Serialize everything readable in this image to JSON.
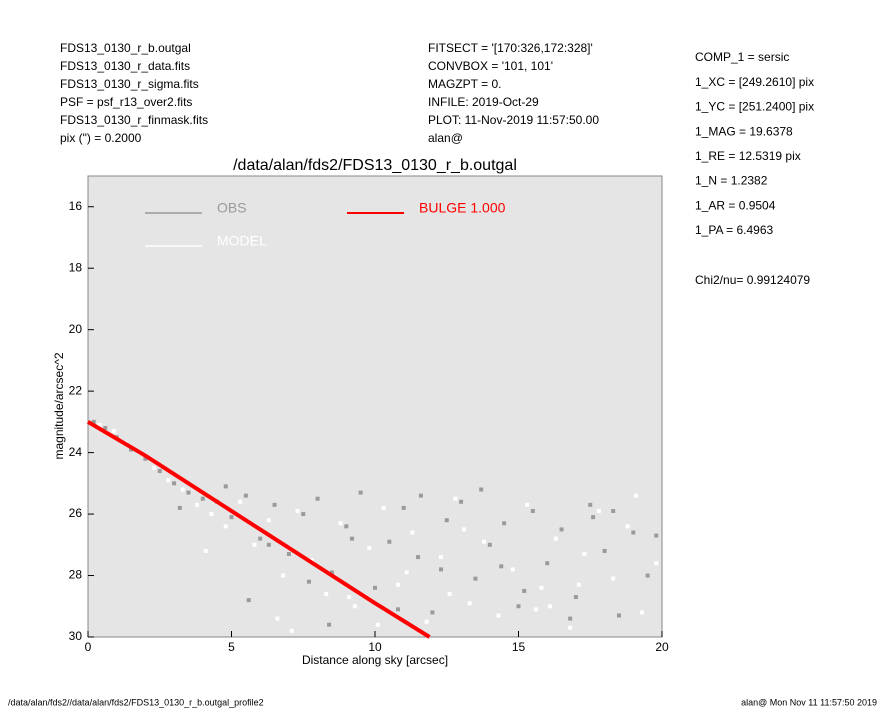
{
  "header": {
    "left": [
      "FDS13_0130_r_b.outgal",
      "FDS13_0130_r_data.fits",
      "FDS13_0130_r_sigma.fits",
      "PSF     = psf_r13_over2.fits",
      "FDS13_0130_r_finmask.fits",
      "pix (\") =  0.2000"
    ],
    "middle": [
      "FITSECT = '[170:326,172:328]'",
      "CONVBOX = '101, 101'",
      "MAGZPT  =              0.",
      "INFILE: 2019-Oct-29",
      "PLOT: 11-Nov-2019 11:57:50.00",
      "alan@"
    ],
    "right": [
      "COMP_1  = sersic",
      "1_XC    = [249.2610] pix",
      "1_YC    = [251.2400] pix",
      "1_MAG   = 19.6378",
      "1_RE    = 12.5319 pix",
      "1_N     = 1.2382",
      "1_AR    = 0.9504",
      "1_PA    = 6.4963"
    ],
    "chi2": "Chi2/nu=      0.99124079"
  },
  "footer": {
    "left": "/data/alan/fds2//data/alan/fds2/FDS13_0130_r_b.outgal_profile2",
    "right": "alan@  Mon Nov 11 11:57:50 2019"
  },
  "chart_data": {
    "type": "scatter",
    "title": "/data/alan/fds2/FDS13_0130_r_b.outgal",
    "x_label": "Distance along sky [arcsec]",
    "y_label": "magnitude/arcsec^2",
    "xlim": [
      0,
      20
    ],
    "xticks": [
      0,
      5,
      10,
      15,
      20
    ],
    "ylim": [
      30,
      15
    ],
    "yticks": [
      16,
      18,
      20,
      22,
      24,
      26,
      28,
      30
    ],
    "series": [
      {
        "name": "OBS",
        "color": "#9a9a9a",
        "mode": "markers",
        "x": [
          0.2,
          0.6,
          1.0,
          1.5,
          2.0,
          2.5,
          3.0,
          3.5,
          4.0,
          4.5,
          5.0,
          5.5,
          6.0,
          6.5,
          7.0,
          7.5,
          8.0,
          8.5,
          9.0,
          9.5,
          10.0,
          10.5,
          11.0,
          11.5,
          12.0,
          12.5,
          13.0,
          13.5,
          14.0,
          14.5,
          15.0,
          15.5,
          16.0,
          16.5,
          17.0,
          17.5,
          18.0,
          18.5,
          19.0,
          19.5,
          3.2,
          4.8,
          6.3,
          7.7,
          9.2,
          10.8,
          12.3,
          13.7,
          15.2,
          16.8,
          18.3,
          19.8,
          5.6,
          8.4,
          11.6,
          14.4,
          17.6
        ],
        "values": [
          23.0,
          23.2,
          23.5,
          23.9,
          24.2,
          24.6,
          25.0,
          25.3,
          25.5,
          25.6,
          26.1,
          25.4,
          26.8,
          25.7,
          27.3,
          26.0,
          25.5,
          27.9,
          26.4,
          25.3,
          28.4,
          26.9,
          25.8,
          27.4,
          29.2,
          26.2,
          25.6,
          28.1,
          27.0,
          26.3,
          29.0,
          25.9,
          27.6,
          26.5,
          28.7,
          25.7,
          27.2,
          29.3,
          26.6,
          28.0,
          25.8,
          25.1,
          27.0,
          28.2,
          26.8,
          29.1,
          27.8,
          25.2,
          28.5,
          29.4,
          25.9,
          26.7,
          28.8,
          29.6,
          25.4,
          27.7,
          26.1
        ]
      },
      {
        "name": "MODEL",
        "color": "#ffffff",
        "mode": "markers",
        "x": [
          0.4,
          0.9,
          1.3,
          1.8,
          2.3,
          2.8,
          3.3,
          3.8,
          4.3,
          4.8,
          5.3,
          5.8,
          6.3,
          6.8,
          7.3,
          7.8,
          8.3,
          8.8,
          9.3,
          9.8,
          10.3,
          10.8,
          11.3,
          11.8,
          12.3,
          12.8,
          13.3,
          13.8,
          14.3,
          14.8,
          15.3,
          15.8,
          16.3,
          16.8,
          17.3,
          17.8,
          18.3,
          18.8,
          19.3,
          19.8,
          4.1,
          6.6,
          9.1,
          11.1,
          13.1,
          15.6,
          17.1,
          19.1,
          7.1,
          10.1,
          12.6,
          16.1
        ],
        "values": [
          23.1,
          23.3,
          23.7,
          24.0,
          24.5,
          24.9,
          25.2,
          25.7,
          26.0,
          26.4,
          25.6,
          27.0,
          26.2,
          28.0,
          25.9,
          27.5,
          28.6,
          26.3,
          29.0,
          27.1,
          25.8,
          28.3,
          26.6,
          29.5,
          27.4,
          25.5,
          28.9,
          26.9,
          29.3,
          27.8,
          25.7,
          28.4,
          26.8,
          29.7,
          27.3,
          25.9,
          28.1,
          26.4,
          29.2,
          27.6,
          27.2,
          29.4,
          28.7,
          27.9,
          26.5,
          29.1,
          28.3,
          25.4,
          29.8,
          29.6,
          28.6,
          29.0
        ]
      },
      {
        "name": "BULGE  1.000",
        "color": "#ff0000",
        "mode": "lines",
        "x": [
          0,
          2,
          4,
          6,
          8,
          10,
          11.9
        ],
        "values": [
          23.0,
          24.1,
          25.3,
          26.5,
          27.7,
          28.9,
          30.0
        ]
      }
    ]
  }
}
